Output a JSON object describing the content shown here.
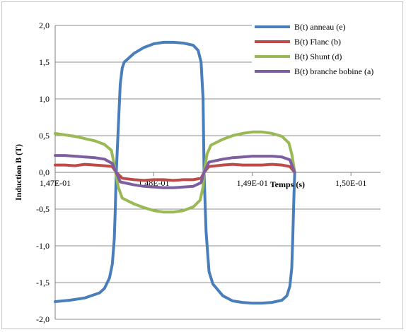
{
  "chart_data": {
    "type": "line",
    "title": "",
    "xlabel": "Temps (s)",
    "ylabel": "Induction B (T)",
    "xlim": [
      0.147,
      0.1503
    ],
    "ylim": [
      -2.0,
      2.0
    ],
    "y_ticks": [
      -2.0,
      -1.5,
      -1.0,
      -0.5,
      0.0,
      0.5,
      1.0,
      1.5,
      2.0
    ],
    "y_tick_labels": [
      "-2,0",
      "-1,5",
      "-1,0",
      "-0,5",
      "0,0",
      "0,5",
      "1,0",
      "1,5",
      "2,0"
    ],
    "x_ticks": [
      0.147,
      0.148,
      0.149,
      0.15
    ],
    "x_tick_labels": [
      "1,47E-01",
      "1,48E-01",
      "1,49E-01",
      "1,50E-01"
    ],
    "grid": "horizontal",
    "legend_position": "top-right",
    "series": [
      {
        "name": "B(t) anneau (e)",
        "color": "#4a7ebb",
        "points": [
          [
            0.147,
            -1.76
          ],
          [
            0.14715,
            -1.74
          ],
          [
            0.1473,
            -1.71
          ],
          [
            0.14745,
            -1.64
          ],
          [
            0.1475,
            -1.58
          ],
          [
            0.14755,
            -1.44
          ],
          [
            0.14758,
            -1.25
          ],
          [
            0.1476,
            -0.9
          ],
          [
            0.14761,
            -0.5
          ],
          [
            0.14762,
            0.0
          ],
          [
            0.14764,
            0.6
          ],
          [
            0.14766,
            1.2
          ],
          [
            0.14768,
            1.42
          ],
          [
            0.1477,
            1.5
          ],
          [
            0.1478,
            1.62
          ],
          [
            0.1479,
            1.7
          ],
          [
            0.148,
            1.75
          ],
          [
            0.1481,
            1.77
          ],
          [
            0.1482,
            1.77
          ],
          [
            0.1483,
            1.76
          ],
          [
            0.1484,
            1.73
          ],
          [
            0.14845,
            1.66
          ],
          [
            0.14848,
            1.5
          ],
          [
            0.1485,
            1.0
          ],
          [
            0.14851,
            0.0
          ],
          [
            0.14853,
            -0.8
          ],
          [
            0.14856,
            -1.35
          ],
          [
            0.1486,
            -1.52
          ],
          [
            0.1487,
            -1.68
          ],
          [
            0.1488,
            -1.75
          ],
          [
            0.1489,
            -1.77
          ],
          [
            0.149,
            -1.78
          ],
          [
            0.1491,
            -1.78
          ],
          [
            0.1492,
            -1.77
          ],
          [
            0.1493,
            -1.74
          ],
          [
            0.14935,
            -1.68
          ],
          [
            0.14938,
            -1.55
          ],
          [
            0.1494,
            -1.3
          ],
          [
            0.14941,
            -0.9
          ],
          [
            0.14942,
            -0.4
          ],
          [
            0.14943,
            0.0
          ]
        ]
      },
      {
        "name": "B(t) Flanc (b)",
        "color": "#be4b48",
        "points": [
          [
            0.147,
            0.1
          ],
          [
            0.1471,
            0.1
          ],
          [
            0.1472,
            0.09
          ],
          [
            0.1473,
            0.11
          ],
          [
            0.1474,
            0.1
          ],
          [
            0.1475,
            0.09
          ],
          [
            0.14758,
            0.08
          ],
          [
            0.14762,
            0.0
          ],
          [
            0.14768,
            -0.08
          ],
          [
            0.1478,
            -0.1
          ],
          [
            0.1479,
            -0.11
          ],
          [
            0.148,
            -0.1
          ],
          [
            0.1481,
            -0.1
          ],
          [
            0.1482,
            -0.11
          ],
          [
            0.1483,
            -0.1
          ],
          [
            0.1484,
            -0.1
          ],
          [
            0.14848,
            -0.08
          ],
          [
            0.14851,
            0.0
          ],
          [
            0.14856,
            0.08
          ],
          [
            0.1487,
            0.1
          ],
          [
            0.1488,
            0.11
          ],
          [
            0.1489,
            0.1
          ],
          [
            0.149,
            0.1
          ],
          [
            0.1491,
            0.1
          ],
          [
            0.1492,
            0.11
          ],
          [
            0.1493,
            0.1
          ],
          [
            0.14938,
            0.08
          ],
          [
            0.14943,
            0.0
          ]
        ]
      },
      {
        "name": "B(t) Shunt (d)",
        "color": "#98b954",
        "points": [
          [
            0.147,
            0.53
          ],
          [
            0.1471,
            0.51
          ],
          [
            0.1472,
            0.49
          ],
          [
            0.1473,
            0.46
          ],
          [
            0.1474,
            0.43
          ],
          [
            0.1475,
            0.38
          ],
          [
            0.14757,
            0.3
          ],
          [
            0.1476,
            0.1
          ],
          [
            0.14762,
            -0.05
          ],
          [
            0.14764,
            -0.2
          ],
          [
            0.14768,
            -0.35
          ],
          [
            0.1478,
            -0.43
          ],
          [
            0.1479,
            -0.48
          ],
          [
            0.148,
            -0.52
          ],
          [
            0.1481,
            -0.54
          ],
          [
            0.1482,
            -0.54
          ],
          [
            0.1483,
            -0.52
          ],
          [
            0.1484,
            -0.47
          ],
          [
            0.14847,
            -0.38
          ],
          [
            0.1485,
            -0.2
          ],
          [
            0.14851,
            0.0
          ],
          [
            0.14854,
            0.25
          ],
          [
            0.14858,
            0.37
          ],
          [
            0.1487,
            0.45
          ],
          [
            0.1488,
            0.5
          ],
          [
            0.1489,
            0.53
          ],
          [
            0.149,
            0.55
          ],
          [
            0.1491,
            0.55
          ],
          [
            0.1492,
            0.53
          ],
          [
            0.1493,
            0.49
          ],
          [
            0.14937,
            0.4
          ],
          [
            0.1494,
            0.25
          ],
          [
            0.14943,
            0.0
          ]
        ]
      },
      {
        "name": "B(t) branche bobine (a)",
        "color": "#7d5fa0",
        "points": [
          [
            0.147,
            0.23
          ],
          [
            0.1471,
            0.23
          ],
          [
            0.1472,
            0.22
          ],
          [
            0.1473,
            0.21
          ],
          [
            0.1474,
            0.2
          ],
          [
            0.1475,
            0.18
          ],
          [
            0.14758,
            0.12
          ],
          [
            0.14762,
            0.0
          ],
          [
            0.14766,
            -0.13
          ],
          [
            0.1478,
            -0.17
          ],
          [
            0.1479,
            -0.19
          ],
          [
            0.148,
            -0.2
          ],
          [
            0.1481,
            -0.21
          ],
          [
            0.1482,
            -0.21
          ],
          [
            0.1483,
            -0.2
          ],
          [
            0.1484,
            -0.19
          ],
          [
            0.14848,
            -0.14
          ],
          [
            0.14851,
            0.0
          ],
          [
            0.14856,
            0.14
          ],
          [
            0.1487,
            0.18
          ],
          [
            0.1488,
            0.2
          ],
          [
            0.1489,
            0.21
          ],
          [
            0.149,
            0.22
          ],
          [
            0.1491,
            0.22
          ],
          [
            0.1492,
            0.22
          ],
          [
            0.1493,
            0.21
          ],
          [
            0.14938,
            0.17
          ],
          [
            0.14943,
            0.0
          ]
        ]
      }
    ]
  }
}
